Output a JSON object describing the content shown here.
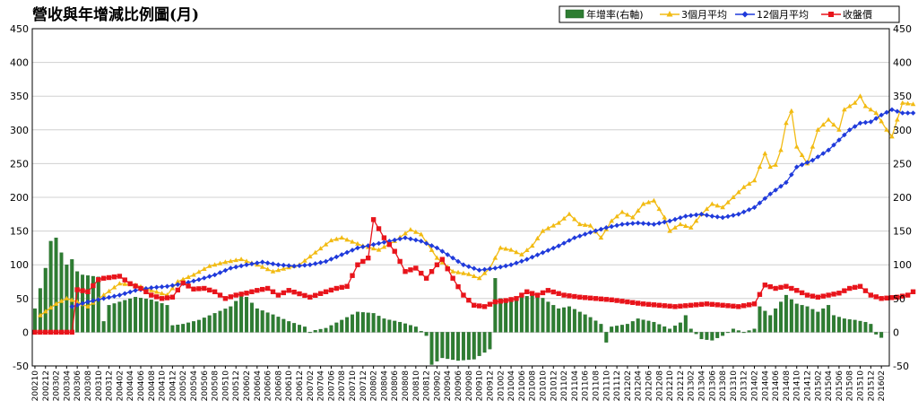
{
  "chart_data": {
    "type": "bar",
    "title": "營收與年增減比例圖(月)",
    "legend": [
      "年增率(右軸)",
      "3個月平均",
      "12個月平均",
      "收盤價"
    ],
    "legend_position": "top-right",
    "grid": true,
    "ylim": [
      -50,
      450
    ],
    "y_ticks": [
      "450",
      "400",
      "350",
      "300",
      "250",
      "200",
      "150",
      "100",
      "50",
      "0",
      "-50"
    ],
    "y2_ticks": [
      "450",
      "400",
      "350",
      "300",
      "250",
      "200",
      "150",
      "100",
      "50",
      "0",
      "-50"
    ],
    "x_ticks": [
      "200210",
      "200212",
      "200302",
      "200304",
      "200306",
      "200308",
      "200310",
      "200312",
      "200402",
      "200404",
      "200406",
      "200408",
      "200410",
      "200412",
      "200502",
      "200504",
      "200506",
      "200508",
      "200510",
      "200512",
      "200602",
      "200604",
      "200606",
      "200608",
      "200610",
      "200612",
      "200702",
      "200704",
      "200706",
      "200708",
      "200710",
      "200712",
      "200802",
      "200804",
      "200806",
      "200808",
      "200810",
      "200812",
      "200902",
      "200904",
      "200906",
      "200908",
      "200910",
      "200912",
      "201002",
      "201004",
      "201006",
      "201008",
      "201010",
      "201012",
      "201102",
      "201104",
      "201106",
      "201108",
      "201110",
      "201112",
      "201202",
      "201204",
      "201206",
      "201208",
      "201210",
      "201212",
      "201302",
      "201304",
      "201306",
      "201308",
      "201310",
      "201312",
      "201402",
      "201404",
      "201406",
      "201408",
      "201410",
      "201412",
      "201502",
      "201504",
      "201506",
      "201508",
      "201510",
      "201512",
      "201602"
    ],
    "months_start": "2002-10",
    "months_end": "2016-03",
    "series": [
      {
        "name": "年增率(右軸)",
        "kind": "bar",
        "color": "#2e7d32",
        "anchors": [
          [
            0,
            35
          ],
          [
            2,
            95
          ],
          [
            3,
            135
          ],
          [
            4,
            140
          ],
          [
            5,
            118
          ],
          [
            6,
            100
          ],
          [
            7,
            108
          ],
          [
            8,
            90
          ],
          [
            9,
            85
          ],
          [
            12,
            82
          ],
          [
            13,
            16
          ],
          [
            14,
            40
          ],
          [
            16,
            45
          ],
          [
            19,
            52
          ],
          [
            22,
            48
          ],
          [
            25,
            40
          ],
          [
            26,
            10
          ],
          [
            28,
            12
          ],
          [
            31,
            18
          ],
          [
            34,
            28
          ],
          [
            37,
            38
          ],
          [
            39,
            54
          ],
          [
            40,
            52
          ],
          [
            42,
            35
          ],
          [
            45,
            26
          ],
          [
            48,
            16
          ],
          [
            51,
            8
          ],
          [
            52,
            0
          ],
          [
            53,
            3
          ],
          [
            55,
            6
          ],
          [
            57,
            14
          ],
          [
            59,
            22
          ],
          [
            61,
            30
          ],
          [
            64,
            28
          ],
          [
            66,
            20
          ],
          [
            69,
            15
          ],
          [
            72,
            8
          ],
          [
            74,
            -5
          ],
          [
            75,
            -48
          ],
          [
            77,
            -38
          ],
          [
            80,
            -42
          ],
          [
            83,
            -40
          ],
          [
            86,
            -25
          ],
          [
            87,
            80
          ],
          [
            88,
            50
          ],
          [
            90,
            45
          ],
          [
            92,
            52
          ],
          [
            95,
            56
          ],
          [
            97,
            45
          ],
          [
            99,
            35
          ],
          [
            101,
            38
          ],
          [
            103,
            30
          ],
          [
            105,
            22
          ],
          [
            107,
            12
          ],
          [
            108,
            -15
          ],
          [
            109,
            8
          ],
          [
            112,
            12
          ],
          [
            114,
            20
          ],
          [
            117,
            15
          ],
          [
            120,
            5
          ],
          [
            122,
            14
          ],
          [
            123,
            25
          ],
          [
            124,
            5
          ],
          [
            126,
            -10
          ],
          [
            128,
            -12
          ],
          [
            130,
            -5
          ],
          [
            132,
            5
          ],
          [
            134,
            0
          ],
          [
            136,
            5
          ],
          [
            137,
            38
          ],
          [
            139,
            25
          ],
          [
            141,
            45
          ],
          [
            142,
            55
          ],
          [
            144,
            42
          ],
          [
            146,
            38
          ],
          [
            148,
            30
          ],
          [
            150,
            40
          ],
          [
            151,
            25
          ],
          [
            153,
            20
          ],
          [
            155,
            18
          ],
          [
            157,
            15
          ],
          [
            158,
            12
          ],
          [
            159,
            -3
          ],
          [
            160,
            -8
          ]
        ]
      },
      {
        "name": "3個月平均",
        "kind": "line",
        "color": "#f2bb13",
        "anchors": [
          [
            1,
            25
          ],
          [
            4,
            42
          ],
          [
            6,
            50
          ],
          [
            8,
            45
          ],
          [
            10,
            38
          ],
          [
            13,
            55
          ],
          [
            16,
            72
          ],
          [
            19,
            70
          ],
          [
            22,
            62
          ],
          [
            25,
            55
          ],
          [
            27,
            75
          ],
          [
            30,
            85
          ],
          [
            33,
            98
          ],
          [
            36,
            104
          ],
          [
            39,
            108
          ],
          [
            42,
            100
          ],
          [
            45,
            90
          ],
          [
            48,
            96
          ],
          [
            50,
            100
          ],
          [
            53,
            118
          ],
          [
            56,
            136
          ],
          [
            58,
            140
          ],
          [
            60,
            134
          ],
          [
            62,
            128
          ],
          [
            65,
            122
          ],
          [
            68,
            135
          ],
          [
            71,
            152
          ],
          [
            73,
            145
          ],
          [
            76,
            110
          ],
          [
            79,
            90
          ],
          [
            82,
            86
          ],
          [
            84,
            80
          ],
          [
            86,
            95
          ],
          [
            88,
            125
          ],
          [
            90,
            122
          ],
          [
            92,
            115
          ],
          [
            94,
            128
          ],
          [
            96,
            150
          ],
          [
            99,
            162
          ],
          [
            101,
            175
          ],
          [
            103,
            160
          ],
          [
            105,
            158
          ],
          [
            107,
            140
          ],
          [
            109,
            165
          ],
          [
            111,
            178
          ],
          [
            113,
            170
          ],
          [
            115,
            190
          ],
          [
            117,
            195
          ],
          [
            119,
            170
          ],
          [
            120,
            150
          ],
          [
            122,
            160
          ],
          [
            124,
            155
          ],
          [
            126,
            175
          ],
          [
            128,
            190
          ],
          [
            130,
            185
          ],
          [
            132,
            200
          ],
          [
            134,
            215
          ],
          [
            136,
            225
          ],
          [
            138,
            265
          ],
          [
            139,
            245
          ],
          [
            140,
            248
          ],
          [
            141,
            270
          ],
          [
            142,
            310
          ],
          [
            143,
            328
          ],
          [
            144,
            275
          ],
          [
            146,
            250
          ],
          [
            148,
            300
          ],
          [
            150,
            315
          ],
          [
            152,
            300
          ],
          [
            153,
            330
          ],
          [
            155,
            340
          ],
          [
            156,
            350
          ],
          [
            157,
            335
          ],
          [
            159,
            325
          ],
          [
            161,
            300
          ],
          [
            162,
            290
          ],
          [
            163,
            315
          ],
          [
            164,
            340
          ],
          [
            166,
            338
          ]
        ]
      },
      {
        "name": "12個月平均",
        "kind": "line",
        "color": "#1f3adb",
        "anchors": [
          [
            7,
            38
          ],
          [
            10,
            45
          ],
          [
            13,
            50
          ],
          [
            16,
            55
          ],
          [
            19,
            62
          ],
          [
            22,
            66
          ],
          [
            25,
            68
          ],
          [
            28,
            72
          ],
          [
            31,
            78
          ],
          [
            34,
            85
          ],
          [
            37,
            95
          ],
          [
            40,
            100
          ],
          [
            43,
            104
          ],
          [
            46,
            100
          ],
          [
            49,
            98
          ],
          [
            52,
            100
          ],
          [
            55,
            105
          ],
          [
            58,
            115
          ],
          [
            61,
            125
          ],
          [
            64,
            130
          ],
          [
            67,
            135
          ],
          [
            70,
            140
          ],
          [
            73,
            135
          ],
          [
            76,
            125
          ],
          [
            79,
            110
          ],
          [
            81,
            100
          ],
          [
            84,
            92
          ],
          [
            87,
            95
          ],
          [
            90,
            100
          ],
          [
            93,
            108
          ],
          [
            96,
            118
          ],
          [
            99,
            128
          ],
          [
            102,
            140
          ],
          [
            105,
            148
          ],
          [
            108,
            155
          ],
          [
            111,
            160
          ],
          [
            114,
            162
          ],
          [
            117,
            160
          ],
          [
            120,
            165
          ],
          [
            123,
            172
          ],
          [
            126,
            175
          ],
          [
            128,
            172
          ],
          [
            130,
            170
          ],
          [
            133,
            175
          ],
          [
            136,
            185
          ],
          [
            139,
            205
          ],
          [
            142,
            222
          ],
          [
            144,
            245
          ],
          [
            147,
            255
          ],
          [
            150,
            270
          ],
          [
            152,
            285
          ],
          [
            154,
            300
          ],
          [
            156,
            310
          ],
          [
            158,
            312
          ],
          [
            160,
            322
          ],
          [
            162,
            330
          ],
          [
            164,
            325
          ],
          [
            166,
            325
          ]
        ]
      },
      {
        "name": "收盤價",
        "kind": "line",
        "color": "#e8141b",
        "anchors": [
          [
            0,
            0
          ],
          [
            7,
            0
          ],
          [
            8,
            63
          ],
          [
            10,
            60
          ],
          [
            12,
            78
          ],
          [
            13,
            80
          ],
          [
            16,
            83
          ],
          [
            18,
            72
          ],
          [
            20,
            65
          ],
          [
            22,
            55
          ],
          [
            24,
            50
          ],
          [
            26,
            52
          ],
          [
            28,
            73
          ],
          [
            30,
            64
          ],
          [
            32,
            65
          ],
          [
            34,
            60
          ],
          [
            36,
            50
          ],
          [
            38,
            55
          ],
          [
            40,
            58
          ],
          [
            42,
            62
          ],
          [
            44,
            65
          ],
          [
            46,
            55
          ],
          [
            48,
            62
          ],
          [
            50,
            57
          ],
          [
            52,
            52
          ],
          [
            55,
            60
          ],
          [
            57,
            65
          ],
          [
            59,
            68
          ],
          [
            61,
            100
          ],
          [
            63,
            110
          ],
          [
            64,
            167
          ],
          [
            66,
            140
          ],
          [
            68,
            120
          ],
          [
            70,
            90
          ],
          [
            72,
            95
          ],
          [
            74,
            80
          ],
          [
            76,
            100
          ],
          [
            77,
            108
          ],
          [
            79,
            80
          ],
          [
            81,
            55
          ],
          [
            83,
            40
          ],
          [
            85,
            38
          ],
          [
            87,
            45
          ],
          [
            89,
            47
          ],
          [
            91,
            50
          ],
          [
            93,
            60
          ],
          [
            95,
            55
          ],
          [
            97,
            62
          ],
          [
            100,
            55
          ],
          [
            103,
            52
          ],
          [
            106,
            50
          ],
          [
            109,
            48
          ],
          [
            112,
            45
          ],
          [
            115,
            42
          ],
          [
            118,
            40
          ],
          [
            121,
            38
          ],
          [
            124,
            40
          ],
          [
            127,
            42
          ],
          [
            130,
            40
          ],
          [
            133,
            38
          ],
          [
            136,
            42
          ],
          [
            138,
            70
          ],
          [
            140,
            65
          ],
          [
            142,
            68
          ],
          [
            144,
            62
          ],
          [
            146,
            55
          ],
          [
            148,
            52
          ],
          [
            150,
            55
          ],
          [
            152,
            58
          ],
          [
            154,
            65
          ],
          [
            156,
            68
          ],
          [
            158,
            55
          ],
          [
            160,
            50
          ],
          [
            163,
            52
          ],
          [
            165,
            55
          ],
          [
            166,
            60
          ]
        ]
      }
    ]
  }
}
